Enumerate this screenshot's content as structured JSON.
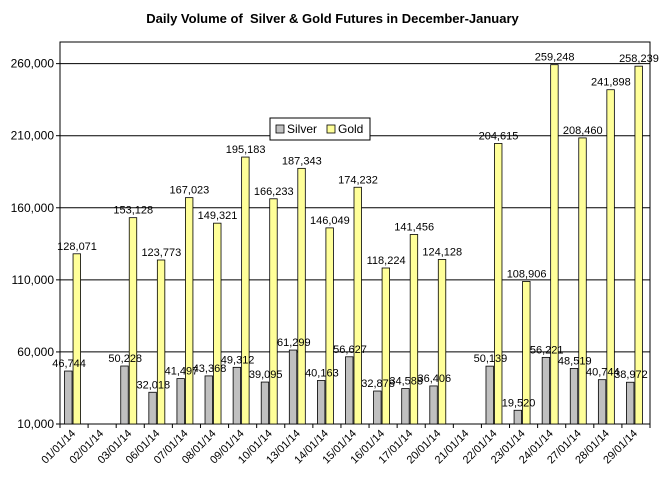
{
  "chart_data": {
    "type": "bar",
    "title": "Daily Volume of  Silver & Gold Futures in December-January",
    "xlabel": "",
    "ylabel": "",
    "ylim": [
      10000,
      275000
    ],
    "yticks": [
      10000,
      60000,
      110000,
      160000,
      210000,
      260000
    ],
    "ytick_labels": [
      "10,000",
      "60,000",
      "110,000",
      "160,000",
      "210,000",
      "260,000"
    ],
    "grid": true,
    "legend_position": "upper-middle",
    "categories": [
      "01/01/14",
      "02/01/14",
      "03/01/14",
      "06/01/14",
      "07/01/14",
      "08/01/14",
      "09/01/14",
      "10/01/14",
      "13/01/14",
      "14/01/14",
      "15/01/14",
      "16/01/14",
      "17/01/14",
      "20/01/14",
      "21/01/14",
      "22/01/14",
      "23/01/14",
      "24/01/14",
      "27/01/14",
      "28/01/14",
      "29/01/14"
    ],
    "series": [
      {
        "name": "Silver",
        "color": "#c0c0c0",
        "values": [
          46744,
          null,
          50228,
          32018,
          41497,
          43368,
          49312,
          39095,
          61299,
          40163,
          56627,
          32878,
          34588,
          36406,
          null,
          50139,
          19520,
          56221,
          48519,
          40744,
          38972
        ],
        "labels": [
          "46,744",
          "",
          "50,228",
          "32,018",
          "41,497",
          "43,368",
          "49,312",
          "39,095",
          "61,299",
          "40,163",
          "56,627",
          "32,878",
          "34,588",
          "36,406",
          "",
          "50,139",
          "19,520",
          "56,221",
          "48,519",
          "40,744",
          "38,972"
        ]
      },
      {
        "name": "Gold",
        "color": "#ffff99",
        "values": [
          128071,
          null,
          153128,
          123773,
          167023,
          149321,
          195183,
          166233,
          187343,
          146049,
          174232,
          118224,
          141456,
          124128,
          null,
          204615,
          108906,
          259248,
          208460,
          241898,
          258239
        ],
        "labels": [
          "128,071",
          "",
          "153,128",
          "123,773",
          "167,023",
          "149,321",
          "195,183",
          "166,233",
          "187,343",
          "146,049",
          "174,232",
          "118,224",
          "141,456",
          "124,128",
          "",
          "204,615",
          "108,906",
          "259,248",
          "208,460",
          "241,898",
          "258,239"
        ]
      }
    ]
  }
}
